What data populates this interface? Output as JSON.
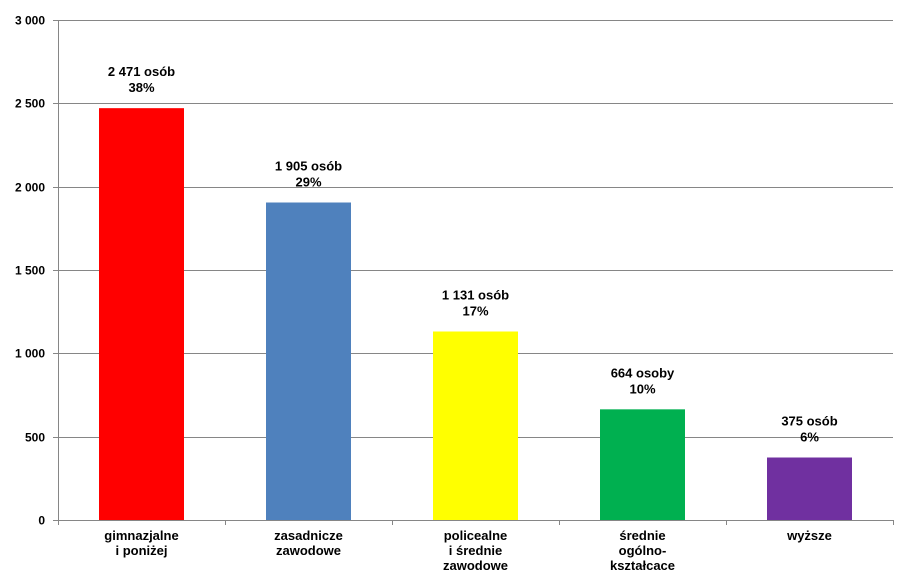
{
  "chart_data": {
    "type": "bar",
    "categories": [
      [
        "gimnazjalne",
        "i poniżej"
      ],
      [
        "zasadnicze",
        "zawodowe"
      ],
      [
        "policealne",
        "i średnie",
        "zawodowe"
      ],
      [
        "średnie",
        "ogólno-",
        "kształcace"
      ],
      [
        "wyższe"
      ]
    ],
    "values": [
      2471,
      1905,
      1131,
      664,
      375
    ],
    "data_labels": [
      [
        "2 471 osób",
        "38%"
      ],
      [
        "1 905 osób",
        "29%"
      ],
      [
        "1 131 osób",
        "17%"
      ],
      [
        "664 osoby",
        "10%"
      ],
      [
        "375 osób",
        "6%"
      ]
    ],
    "colors": [
      "#ff0000",
      "#4f81bd",
      "#ffff00",
      "#00b050",
      "#7030a0"
    ],
    "ylim": [
      0,
      3000
    ],
    "yticks": [
      0,
      500,
      1000,
      1500,
      2000,
      2500,
      3000
    ],
    "ytick_labels": [
      "0",
      "500",
      "1 000",
      "1 500",
      "2 000",
      "2 500",
      "3 000"
    ],
    "grid": true,
    "grid_color": "#868686",
    "legend": "none"
  }
}
